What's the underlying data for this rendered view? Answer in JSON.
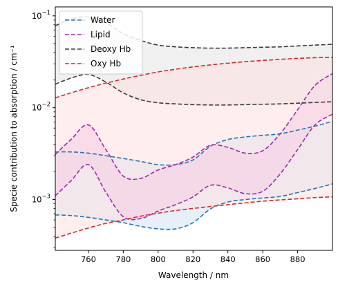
{
  "chart_data": {
    "type": "area",
    "xlabel": "Wavelength / nm",
    "ylabel": "Specie contribution to absorption / cm⁻¹",
    "xlim": [
      741,
      900
    ],
    "ylim": [
      0.00028,
      0.125
    ],
    "yscale": "log",
    "grid": false,
    "legend_position": "top-left",
    "x_ticks": [
      "760",
      "780",
      "800",
      "820",
      "840",
      "860",
      "880"
    ],
    "y_ticks": [
      {
        "value": 0.001,
        "base": "10",
        "exp": "−3"
      },
      {
        "value": 0.01,
        "base": "10",
        "exp": "−2"
      },
      {
        "value": 0.1,
        "base": "10",
        "exp": "−1"
      }
    ],
    "x": [
      741,
      750,
      760,
      770,
      780,
      790,
      800,
      810,
      820,
      830,
      840,
      850,
      860,
      870,
      880,
      890,
      900
    ],
    "series": [
      {
        "name": "Water",
        "color": "#1f77b4",
        "fill": "#cfe3f3",
        "upper": [
          0.0033,
          0.0033,
          0.0032,
          0.003,
          0.0028,
          0.0026,
          0.0024,
          0.0024,
          0.0027,
          0.0038,
          0.0045,
          0.0048,
          0.005,
          0.0052,
          0.0057,
          0.0063,
          0.0071
        ],
        "lower": [
          0.00068,
          0.00067,
          0.00064,
          0.0006,
          0.00056,
          0.00051,
          0.00048,
          0.00048,
          0.00056,
          0.00079,
          0.00094,
          0.001,
          0.00104,
          0.00108,
          0.00119,
          0.00132,
          0.00148
        ]
      },
      {
        "name": "Lipid",
        "color": "#9c27b0",
        "fill": "#ebb8e6",
        "upper": [
          0.0031,
          0.0045,
          0.0065,
          0.0035,
          0.0018,
          0.0017,
          0.0021,
          0.0024,
          0.0029,
          0.0039,
          0.0037,
          0.0032,
          0.0034,
          0.0052,
          0.0095,
          0.0175,
          0.0235
        ],
        "lower": [
          0.0011,
          0.0016,
          0.0024,
          0.0012,
          0.00065,
          0.00062,
          0.00075,
          0.00088,
          0.00107,
          0.00143,
          0.00134,
          0.00116,
          0.00123,
          0.0019,
          0.0035,
          0.0065,
          0.0085
        ]
      },
      {
        "name": "Deoxy Hb",
        "color": "#3a3a3a",
        "fill": "#e4e4e4",
        "upper": [
          0.078,
          0.092,
          0.097,
          0.084,
          0.064,
          0.054,
          0.048,
          0.046,
          0.045,
          0.0445,
          0.0445,
          0.045,
          0.0455,
          0.046,
          0.047,
          0.048,
          0.049
        ],
        "lower": [
          0.018,
          0.021,
          0.023,
          0.019,
          0.0145,
          0.0122,
          0.0113,
          0.011,
          0.0108,
          0.0107,
          0.0107,
          0.0108,
          0.0109,
          0.011,
          0.0112,
          0.0114,
          0.0116
        ]
      },
      {
        "name": "Oxy Hb",
        "color": "#d62728",
        "fill": "#fde0e0",
        "upper": [
          0.0128,
          0.0145,
          0.0165,
          0.0185,
          0.0205,
          0.0225,
          0.0245,
          0.0262,
          0.0278,
          0.0292,
          0.0305,
          0.0317,
          0.0327,
          0.0336,
          0.0344,
          0.035,
          0.0354
        ],
        "lower": [
          0.00038,
          0.00043,
          0.00049,
          0.00055,
          0.0006,
          0.00066,
          0.00071,
          0.00076,
          0.0008,
          0.00084,
          0.00088,
          0.00092,
          0.00096,
          0.00099,
          0.00102,
          0.00105,
          0.00107
        ]
      }
    ]
  }
}
